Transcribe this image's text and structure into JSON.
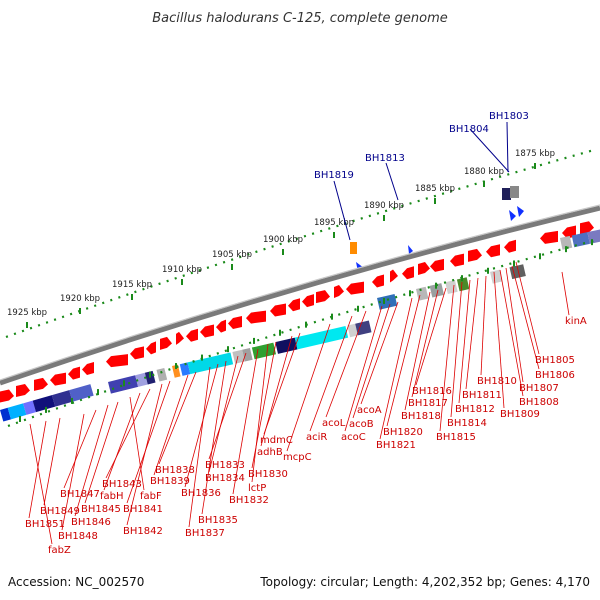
{
  "title": "Bacillus halodurans C-125, complete genome",
  "footer": {
    "accession": "Accession: NC_002570",
    "summary": "Topology: circular; Length: 4,202,352 bp; Genes: 4,170"
  },
  "kbp_labels": [
    "1925 kbp",
    "1920 kbp",
    "1915 kbp",
    "1910 kbp",
    "1905 kbp",
    "1900 kbp",
    "1895 kbp",
    "1890 kbp",
    "1885 kbp",
    "1880 kbp",
    "1875 kbp"
  ],
  "upper_gene_labels": [
    "BH1819",
    "BH1813",
    "BH1804",
    "BH1803"
  ],
  "lower_gene_labels": [
    "kinA",
    "BH1805",
    "BH1806",
    "BH1807",
    "BH1808",
    "BH1809",
    "BH1810",
    "BH1811",
    "BH1812",
    "BH1814",
    "BH1815",
    "BH1816",
    "BH1817",
    "BH1818",
    "BH1820",
    "BH1821",
    "acoA",
    "acoB",
    "acoC",
    "acoL",
    "aciR",
    "mcpC",
    "mdmC",
    "adhB",
    "lctP",
    "BH1830",
    "BH1832",
    "BH1833",
    "BH1834",
    "BH1835",
    "BH1836",
    "BH1837",
    "BH1838",
    "BH1839",
    "BH1841",
    "BH1842",
    "BH1843",
    "fabH",
    "fabF",
    "BH1845",
    "BH1846",
    "BH1847",
    "BH1848",
    "BH1849",
    "BH1851",
    "fabZ"
  ],
  "colors": {
    "upper_label": "#00008b",
    "lower_label": "#cc0000",
    "gene_arrow": "#ff0000",
    "backbone": "#7a7a7a",
    "tick": "#1a8a1a"
  }
}
